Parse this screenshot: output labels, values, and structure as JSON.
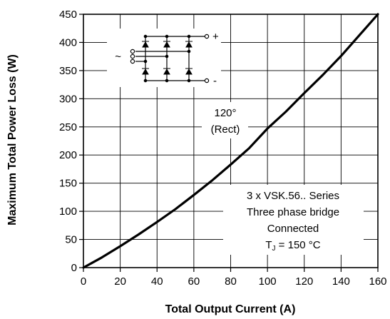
{
  "chart_data": {
    "type": "line",
    "title": "",
    "xlabel": "Total Output Current (A)",
    "ylabel": "Maximum Total Power Loss (W)",
    "xlim": [
      0,
      160
    ],
    "ylim": [
      0,
      450
    ],
    "xticks": [
      0,
      20,
      40,
      60,
      80,
      100,
      120,
      140,
      160
    ],
    "yticks": [
      0,
      50,
      100,
      150,
      200,
      250,
      300,
      350,
      400,
      450
    ],
    "grid": true,
    "series": [
      {
        "x": [
          0,
          10,
          20,
          30,
          40,
          50,
          60,
          70,
          80,
          90,
          100,
          110,
          120,
          130,
          140,
          150,
          160
        ],
        "y": [
          0,
          18,
          38,
          59,
          81,
          104,
          129,
          155,
          183,
          212,
          247,
          277,
          310,
          342,
          376,
          413,
          450
        ]
      }
    ],
    "annotations": {
      "angle": "120°",
      "condition": "(Rect)",
      "device_line1": "3 x VSK.56.. Series",
      "device_line2": "Three phase bridge",
      "device_line3": "Connected",
      "tj_symbol": "T",
      "tj_subscript": "J",
      "tj_value": " = 150 °C"
    },
    "schematic": {
      "plus_label": "+",
      "minus_label": "-",
      "ac_label": "~"
    }
  }
}
